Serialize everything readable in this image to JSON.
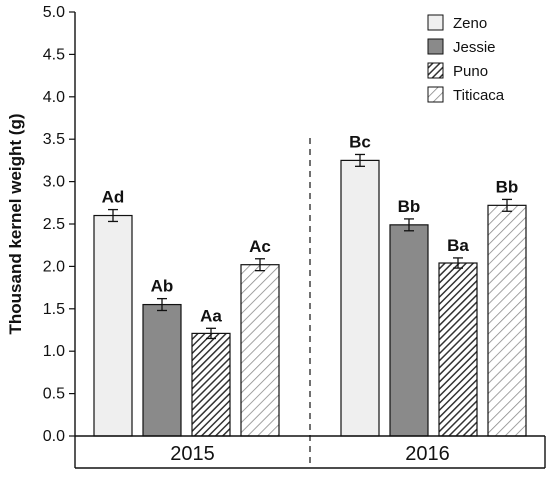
{
  "chart_data": {
    "type": "bar",
    "title": "",
    "xlabel": "",
    "ylabel": "Thousand kernel weight (g)",
    "ylim": [
      0.0,
      5.0
    ],
    "yticks": [
      "0.0",
      "0.5",
      "1.0",
      "1.5",
      "2.0",
      "2.5",
      "3.0",
      "3.5",
      "4.0",
      "4.5",
      "5.0"
    ],
    "categories": [
      "2015",
      "2016"
    ],
    "legend_position": "top-right",
    "grid": false,
    "series": [
      {
        "name": "Zeno",
        "fill": "solid",
        "color": "#efefef",
        "values": [
          2.6,
          3.25
        ],
        "errors": [
          0.07,
          0.07
        ],
        "labels": [
          "Ad",
          "Bc"
        ]
      },
      {
        "name": "Jessie",
        "fill": "solid",
        "color": "#8a8a8a",
        "values": [
          1.55,
          2.49
        ],
        "errors": [
          0.07,
          0.07
        ],
        "labels": [
          "Ab",
          "Bb"
        ]
      },
      {
        "name": "Puno",
        "fill": "hatch-dense",
        "color": "#333333",
        "values": [
          1.21,
          2.04
        ],
        "errors": [
          0.06,
          0.06
        ],
        "labels": [
          "Aa",
          "Ba"
        ]
      },
      {
        "name": "Titicaca",
        "fill": "hatch-sparse",
        "color": "#8a8a8a",
        "values": [
          2.02,
          2.72
        ],
        "errors": [
          0.07,
          0.07
        ],
        "labels": [
          "Ac",
          "Bb"
        ]
      }
    ]
  }
}
